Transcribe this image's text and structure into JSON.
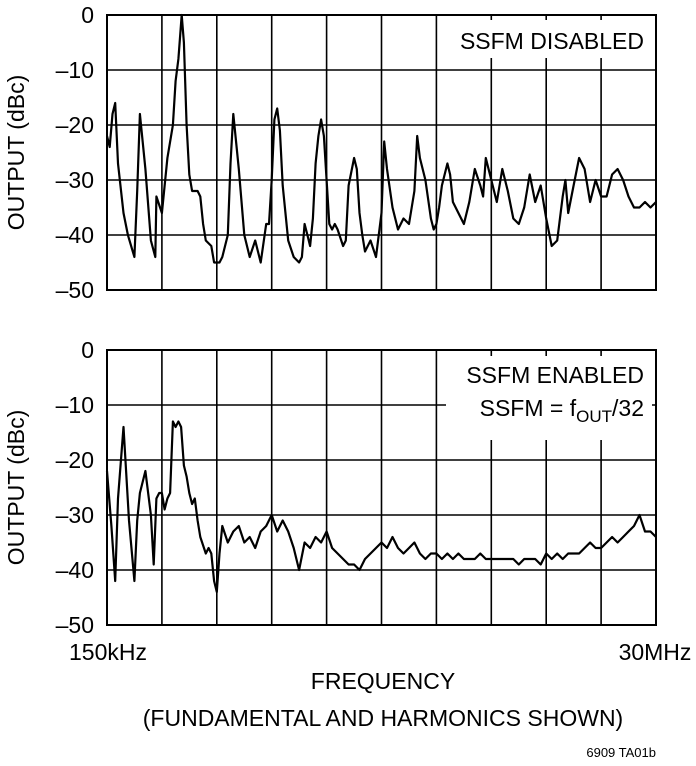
{
  "chart_data": [
    {
      "type": "line",
      "annotation": [
        "SSFM DISABLED"
      ],
      "ylabel": "OUTPUT (dBc)",
      "yticks": [
        "0",
        "–10",
        "–20",
        "–30",
        "–40",
        "–50"
      ],
      "ylim": [
        -50,
        0
      ],
      "xlim": [
        0,
        10
      ],
      "x_divisions": 10,
      "grid": true,
      "series": [
        {
          "x": [
            0,
            0.05,
            0.1,
            0.15,
            0.2,
            0.3,
            0.38,
            0.5,
            0.55,
            0.6,
            0.7,
            0.8,
            0.88,
            0.9,
            1.0,
            1.1,
            1.2,
            1.25,
            1.3,
            1.36,
            1.4,
            1.45,
            1.5,
            1.55,
            1.57,
            1.6,
            1.65,
            1.7,
            1.75,
            1.8,
            1.9,
            1.95,
            2.0,
            2.05,
            2.1,
            2.2,
            2.25,
            2.3,
            2.4,
            2.5,
            2.6,
            2.7,
            2.8,
            2.9,
            2.95,
            3.0,
            3.05,
            3.1,
            3.15,
            3.2,
            3.3,
            3.4,
            3.5,
            3.55,
            3.6,
            3.65,
            3.7,
            3.75,
            3.8,
            3.85,
            3.9,
            3.95,
            4.0,
            4.05,
            4.1,
            4.15,
            4.2,
            4.3,
            4.35,
            4.4,
            4.5,
            4.55,
            4.6,
            4.65,
            4.7,
            4.8,
            4.9,
            5.0,
            5.05,
            5.1,
            5.2,
            5.3,
            5.4,
            5.5,
            5.6,
            5.65,
            5.7,
            5.8,
            5.9,
            5.95,
            6.0,
            6.05,
            6.1,
            6.2,
            6.25,
            6.3,
            6.4,
            6.5,
            6.6,
            6.7,
            6.8,
            6.85,
            6.9,
            7.0,
            7.1,
            7.2,
            7.3,
            7.4,
            7.5,
            7.6,
            7.7,
            7.8,
            7.9,
            8.0,
            8.1,
            8.2,
            8.3,
            8.35,
            8.4,
            8.5,
            8.6,
            8.7,
            8.8,
            8.9,
            9.0,
            9.1,
            9.2,
            9.3,
            9.4,
            9.5,
            9.6,
            9.7,
            9.8,
            9.9,
            10.0
          ],
          "values": [
            -22,
            -24,
            -18,
            -16,
            -27,
            -36,
            -40,
            -44,
            -32,
            -18,
            -28,
            -41,
            -44,
            -33,
            -36,
            -26,
            -20,
            -12,
            -8,
            0,
            -5,
            -20,
            -29,
            -32,
            -32,
            -32,
            -32,
            -33,
            -38,
            -41,
            -42,
            -45,
            -45,
            -45,
            -44,
            -40,
            -27,
            -18,
            -28,
            -40,
            -44,
            -41,
            -45,
            -38,
            -38,
            -30,
            -19,
            -17,
            -21,
            -31,
            -41,
            -44,
            -45,
            -44,
            -38,
            -40,
            -42,
            -37,
            -27,
            -22,
            -19,
            -22,
            -30,
            -38,
            -39,
            -38,
            -39,
            -42,
            -41,
            -31,
            -26,
            -28,
            -36,
            -40,
            -43,
            -41,
            -44,
            -36,
            -23,
            -28,
            -35,
            -39,
            -37,
            -38,
            -32,
            -22,
            -26,
            -30,
            -37,
            -39,
            -38,
            -35,
            -31,
            -27,
            -29,
            -34,
            -36,
            -38,
            -34,
            -28,
            -31,
            -33,
            -26,
            -30,
            -34,
            -28,
            -32,
            -37,
            -38,
            -35,
            -29,
            -34,
            -31,
            -37,
            -42,
            -41,
            -33,
            -30,
            -36,
            -31,
            -26,
            -28,
            -34,
            -30,
            -33,
            -33,
            -29,
            -28,
            -30,
            -33,
            -35,
            -35,
            -34,
            -35,
            -34
          ]
        }
      ]
    },
    {
      "type": "line",
      "annotation": [
        "SSFM ENABLED",
        "SSFM = f",
        "OUT",
        "/32"
      ],
      "ylabel": "OUTPUT (dBc)",
      "yticks": [
        "0",
        "–10",
        "–20",
        "–30",
        "–40",
        "–50"
      ],
      "ylim": [
        -50,
        0
      ],
      "xlim": [
        0,
        10
      ],
      "x_divisions": 10,
      "grid": true,
      "xticklabels": [
        "150kHz",
        "30MHz"
      ],
      "xlabel": "FREQUENCY",
      "xlabel2": "(FUNDAMENTAL AND HARMONICS SHOWN)",
      "series": [
        {
          "x": [
            0,
            0.08,
            0.15,
            0.2,
            0.3,
            0.4,
            0.5,
            0.55,
            0.6,
            0.7,
            0.8,
            0.85,
            0.9,
            0.95,
            1.0,
            1.05,
            1.1,
            1.15,
            1.2,
            1.25,
            1.3,
            1.35,
            1.4,
            1.45,
            1.5,
            1.55,
            1.6,
            1.65,
            1.7,
            1.8,
            1.85,
            1.9,
            1.95,
            2.0,
            2.05,
            2.1,
            2.2,
            2.3,
            2.4,
            2.5,
            2.6,
            2.7,
            2.8,
            2.9,
            3.0,
            3.1,
            3.2,
            3.3,
            3.4,
            3.5,
            3.6,
            3.7,
            3.8,
            3.9,
            4.0,
            4.1,
            4.2,
            4.3,
            4.4,
            4.5,
            4.6,
            4.7,
            4.8,
            4.9,
            5.0,
            5.1,
            5.2,
            5.3,
            5.4,
            5.5,
            5.6,
            5.7,
            5.8,
            5.9,
            6.0,
            6.1,
            6.2,
            6.3,
            6.4,
            6.5,
            6.6,
            6.7,
            6.8,
            6.9,
            7.0,
            7.1,
            7.2,
            7.3,
            7.4,
            7.5,
            7.6,
            7.7,
            7.8,
            7.9,
            8.0,
            8.1,
            8.2,
            8.3,
            8.4,
            8.5,
            8.6,
            8.7,
            8.8,
            8.9,
            9.0,
            9.1,
            9.2,
            9.3,
            9.4,
            9.5,
            9.6,
            9.7,
            9.8,
            9.9,
            10.0
          ],
          "values": [
            -22,
            -32,
            -42,
            -27,
            -14,
            -31,
            -42,
            -31,
            -26,
            -22,
            -30,
            -39,
            -27,
            -26,
            -26,
            -29,
            -27,
            -26,
            -13,
            -14,
            -13,
            -14,
            -21,
            -23,
            -26,
            -28,
            -27,
            -31,
            -34,
            -37,
            -36,
            -37,
            -42,
            -44,
            -37,
            -32,
            -35,
            -33,
            -32,
            -35,
            -34,
            -36,
            -33,
            -32,
            -30,
            -33,
            -31,
            -33,
            -36,
            -40,
            -35,
            -36,
            -34,
            -35,
            -33,
            -36,
            -37,
            -38,
            -39,
            -39,
            -40,
            -38,
            -37,
            -36,
            -35,
            -36,
            -34,
            -36,
            -37,
            -36,
            -35,
            -37,
            -38,
            -37,
            -37,
            -38,
            -37,
            -38,
            -37,
            -38,
            -38,
            -38,
            -37,
            -38,
            -38,
            -38,
            -38,
            -38,
            -38,
            -39,
            -38,
            -38,
            -38,
            -39,
            -37,
            -38,
            -37,
            -38,
            -37,
            -37,
            -37,
            -36,
            -35,
            -36,
            -36,
            -35,
            -34,
            -35,
            -34,
            -33,
            -32,
            -30,
            -33,
            -33,
            -34
          ]
        }
      ]
    }
  ],
  "figure_id": "6909 TA01b"
}
